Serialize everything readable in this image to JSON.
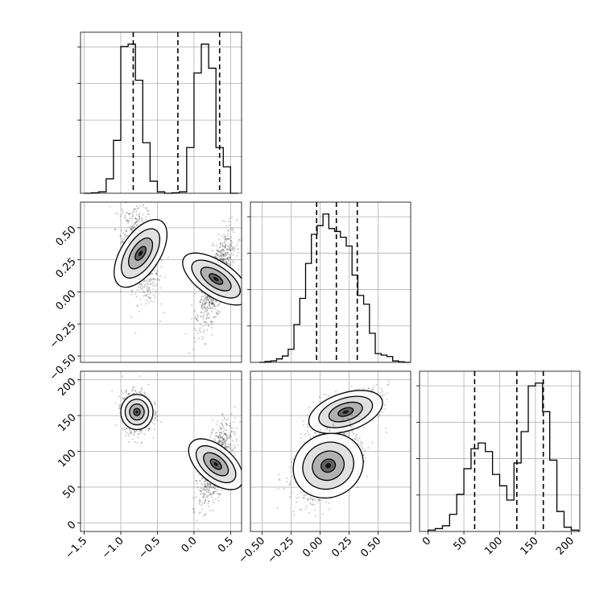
{
  "chart_data": [
    {
      "panel": "hist-param0",
      "type": "histogram",
      "variable_index": 0,
      "xlim": [
        -1.55,
        0.65
      ],
      "bins_x": [
        -1.45,
        -1.35,
        -1.25,
        -1.15,
        -1.05,
        -0.95,
        -0.85,
        -0.75,
        -0.65,
        -0.55,
        -0.45,
        -0.35,
        -0.25,
        -0.15,
        -0.05,
        0.05,
        0.15,
        0.25,
        0.35,
        0.45,
        0.55
      ],
      "counts": [
        0,
        1,
        3,
        30,
        110,
        305,
        310,
        235,
        105,
        25,
        3,
        0,
        1,
        3,
        95,
        250,
        310,
        260,
        95,
        55,
        0
      ],
      "quantiles": [
        -0.83,
        -0.22,
        0.35
      ],
      "grid": true
    },
    {
      "panel": "hist-param1",
      "type": "histogram",
      "variable_index": 1,
      "xlim": [
        -0.6,
        0.78
      ],
      "bins_x": [
        -0.5,
        -0.45,
        -0.4,
        -0.35,
        -0.3,
        -0.25,
        -0.2,
        -0.15,
        -0.1,
        -0.05,
        0,
        0.05,
        0.1,
        0.15,
        0.2,
        0.25,
        0.3,
        0.35,
        0.4,
        0.45,
        0.5,
        0.55,
        0.6,
        0.65,
        0.7,
        0.75
      ],
      "counts": [
        0,
        3,
        5,
        12,
        22,
        45,
        130,
        220,
        340,
        440,
        470,
        510,
        460,
        450,
        430,
        400,
        300,
        230,
        200,
        100,
        30,
        25,
        20,
        5,
        2,
        0
      ],
      "quantiles": [
        -0.03,
        0.14,
        0.32
      ],
      "grid": true
    },
    {
      "panel": "hist-param2",
      "type": "histogram",
      "variable_index": 2,
      "xlim": [
        -12,
        212
      ],
      "bins_x": [
        5,
        15,
        25,
        35,
        45,
        55,
        65,
        75,
        85,
        95,
        105,
        115,
        125,
        135,
        145,
        155,
        165,
        175,
        185,
        195,
        205
      ],
      "counts": [
        5,
        10,
        20,
        60,
        130,
        220,
        290,
        310,
        280,
        200,
        160,
        110,
        240,
        350,
        510,
        520,
        420,
        250,
        70,
        15,
        5
      ],
      "quantiles": [
        65,
        124,
        161
      ],
      "grid": true
    },
    {
      "panel": "scatter-param0-param1",
      "type": "scatter",
      "x_variable": 0,
      "y_variable": 1,
      "xlim": [
        -1.55,
        0.65
      ],
      "ylim": [
        -0.55,
        0.7
      ],
      "x_ticks": [
        -1.5,
        -1.0,
        -0.5,
        0.0,
        0.5
      ],
      "y_ticks": [
        -0.5,
        -0.25,
        0.0,
        0.25,
        0.5
      ],
      "y_tick_labels": [
        "−0.50",
        "−0.25",
        "0.00",
        "0.25",
        "0.50"
      ],
      "clusters": [
        {
          "center": [
            -0.73,
            0.3
          ],
          "spread": [
            0.12,
            0.17
          ],
          "corr": -0.3
        },
        {
          "center": [
            0.3,
            0.1
          ],
          "spread": [
            0.11,
            0.17
          ],
          "corr": 0.7
        }
      ],
      "grid": true
    },
    {
      "panel": "scatter-param0-param2",
      "type": "scatter",
      "x_variable": 0,
      "y_variable": 2,
      "xlim": [
        -1.55,
        0.65
      ],
      "ylim": [
        -12,
        212
      ],
      "x_ticks": [
        -1.5,
        -1.0,
        -0.5,
        0.0,
        0.5
      ],
      "x_tick_labels": [
        "−1.5",
        "−1.0",
        "−0.5",
        "0.0",
        "0.5"
      ],
      "y_ticks": [
        0,
        50,
        100,
        150,
        200
      ],
      "y_tick_labels": [
        "0",
        "50",
        "100",
        "150",
        "200"
      ],
      "clusters": [
        {
          "center": [
            -0.78,
            155
          ],
          "spread": [
            0.1,
            14
          ],
          "corr": 0.0
        },
        {
          "center": [
            0.3,
            82
          ],
          "spread": [
            0.11,
            26
          ],
          "corr": 0.6
        }
      ],
      "grid": true
    },
    {
      "panel": "scatter-param1-param2",
      "type": "scatter",
      "x_variable": 1,
      "y_variable": 2,
      "xlim": [
        -0.6,
        0.78
      ],
      "ylim": [
        -12,
        212
      ],
      "x_ticks": [
        -0.5,
        -0.25,
        0.0,
        0.25,
        0.5
      ],
      "x_tick_labels": [
        "−0.50",
        "−0.25",
        "0.00",
        "0.25",
        "0.50"
      ],
      "y_ticks": [
        0,
        50,
        100,
        150,
        200
      ],
      "clusters": [
        {
          "center": [
            0.22,
            155
          ],
          "spread": [
            0.15,
            15
          ],
          "corr": 0.6
        },
        {
          "center": [
            0.07,
            80
          ],
          "spread": [
            0.14,
            25
          ],
          "corr": 0.5
        }
      ],
      "grid": true
    },
    {
      "panel": "hist-param2-axis",
      "type": "axis",
      "x_ticks": [
        0,
        50,
        100,
        150,
        200
      ],
      "x_tick_labels": [
        "0",
        "50",
        "100",
        "150",
        "200"
      ]
    }
  ]
}
